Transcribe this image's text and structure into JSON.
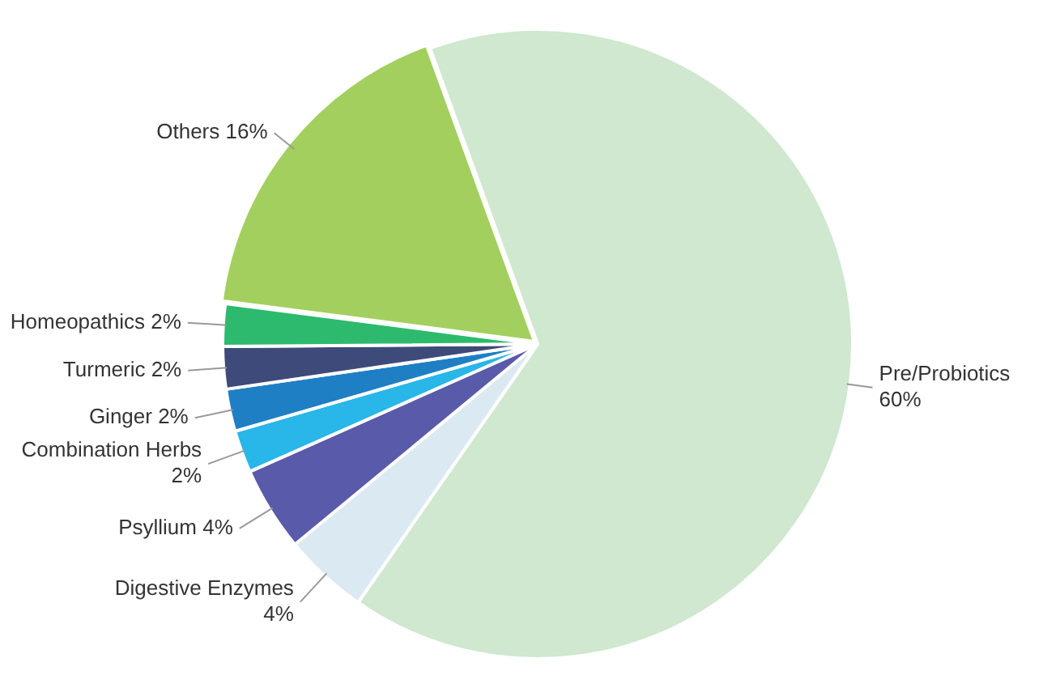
{
  "chart_data": {
    "type": "pie",
    "categories": [
      "Pre/Probiotics",
      "Digestive Enzymes",
      "Psyllium",
      "Combination Herbs",
      "Ginger",
      "Turmeric",
      "Homeopathics",
      "Others"
    ],
    "values": [
      60,
      4,
      4,
      2,
      2,
      2,
      2,
      16
    ],
    "value_labels": [
      "60%",
      "4%",
      "4%",
      "2%",
      "2%",
      "2%",
      "2%",
      "16%"
    ],
    "colors": [
      "#cfe8cf",
      "#dbe9f3",
      "#5a5aaa",
      "#29b6e8",
      "#1e7fc4",
      "#3e4a7a",
      "#2dba6e",
      "#a3cf5f"
    ],
    "legend": false
  }
}
